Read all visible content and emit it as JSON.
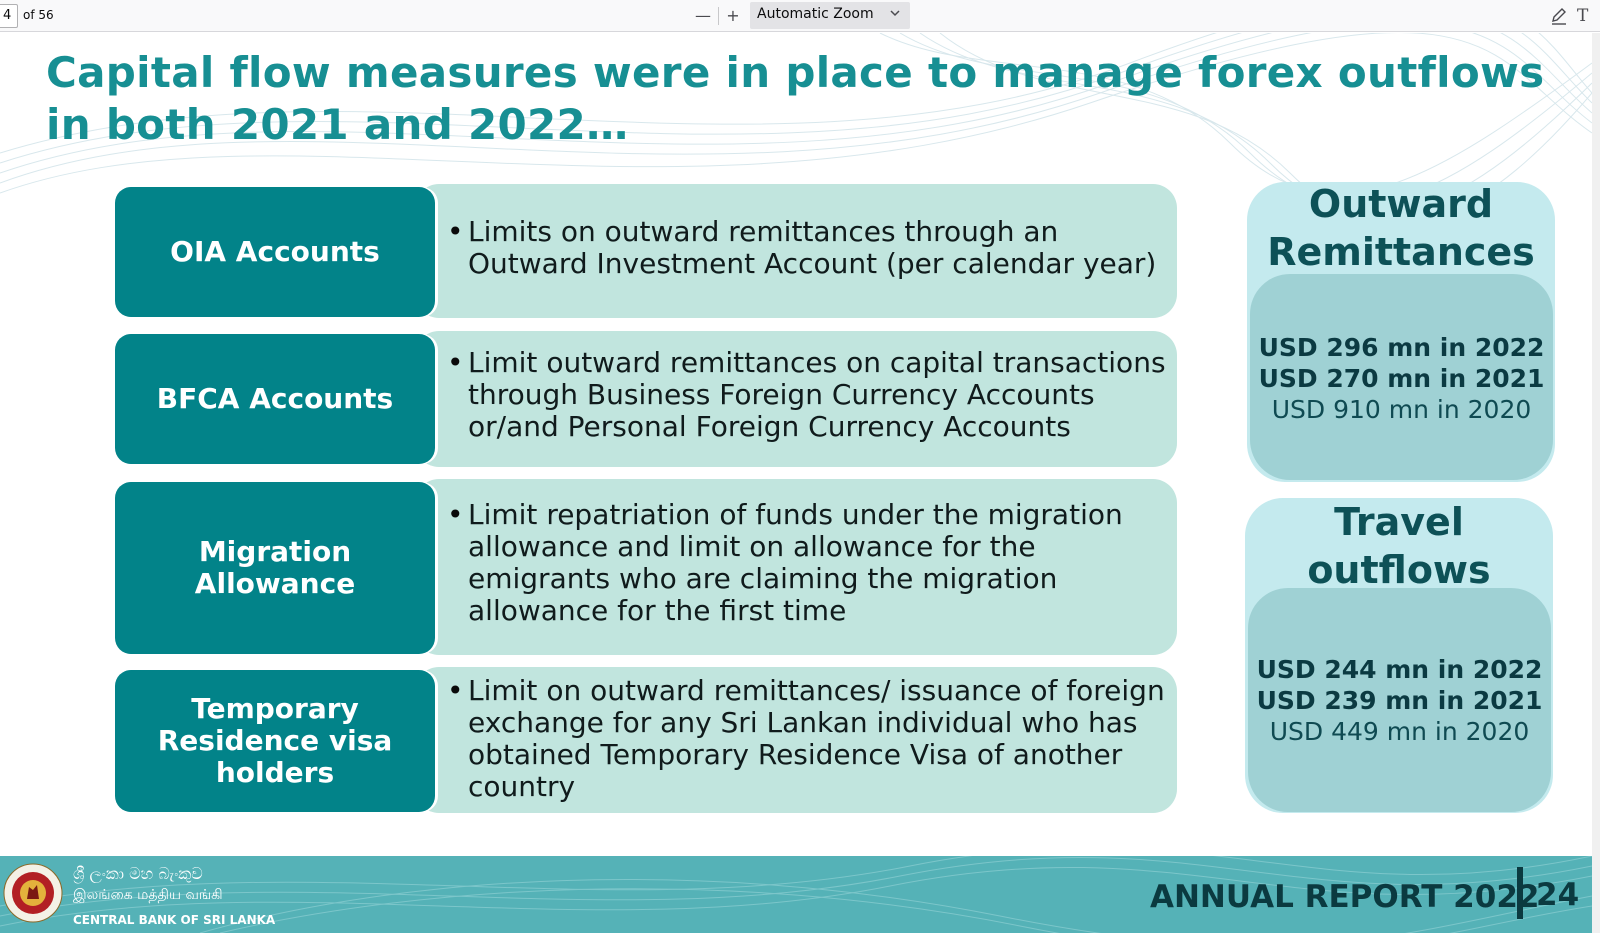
{
  "toolbar": {
    "page_number": "4",
    "page_count": "of 56",
    "zoom_out": "—",
    "zoom_in": "+",
    "zoom_level": "Automatic Zoom",
    "text_tool": "T"
  },
  "slide": {
    "title": "Capital flow measures were in place to manage forex outflows in both 2021 and 2022…",
    "rows": [
      {
        "label": "OIA Accounts",
        "description": "Limits on outward remittances through an Outward Investment Account (per calendar year)"
      },
      {
        "label": "BFCA Accounts",
        "description": "Limit outward remittances on capital transactions through Business Foreign Currency Accounts or/and Personal Foreign Currency Accounts"
      },
      {
        "label": "Migration Allowance",
        "description": "Limit repatriation of funds under the migration allowance and limit on allowance for the emigrants who are claiming the migration allowance for the first time"
      },
      {
        "label": "Temporary Residence visa holders",
        "description": "Limit on outward remittances/ issuance of foreign exchange for any Sri Lankan individual who has obtained Temporary Residence Visa of another country"
      }
    ],
    "bullet": "•",
    "cards": [
      {
        "title": "Outward Remittances",
        "lines": [
          "USD 296 mn in 2022",
          "USD 270 mn in 2021",
          "USD 910 mn in 2020"
        ]
      },
      {
        "title": "Travel outflows",
        "lines": [
          "USD 244 mn in 2022",
          "USD 239 mn in 2021",
          "USD 449 mn in 2020"
        ]
      }
    ]
  },
  "footer": {
    "bank_name_sinhala": "ශ්‍රී ලංකා මහ බැංකුව",
    "bank_name_tamil": "இலங்கை மத்திய வங்கி",
    "bank_name_english": "CENTRAL BANK OF SRI LANKA",
    "report_title": "ANNUAL REPORT 2022",
    "page_number": "24"
  },
  "colors": {
    "title_teal": "#178f93",
    "label_teal": "#028389",
    "description_mint": "#c1e5de",
    "card_light": "#c4eaee",
    "card_body": "#9fd1d4",
    "footer_teal": "#55b2b7",
    "dark_text": "#0b3a40"
  },
  "icons": {
    "draw": "pen-icon",
    "text": "text-icon",
    "zoom_menu": "chevron-down-icon",
    "logo": "bank-seal-logo"
  }
}
